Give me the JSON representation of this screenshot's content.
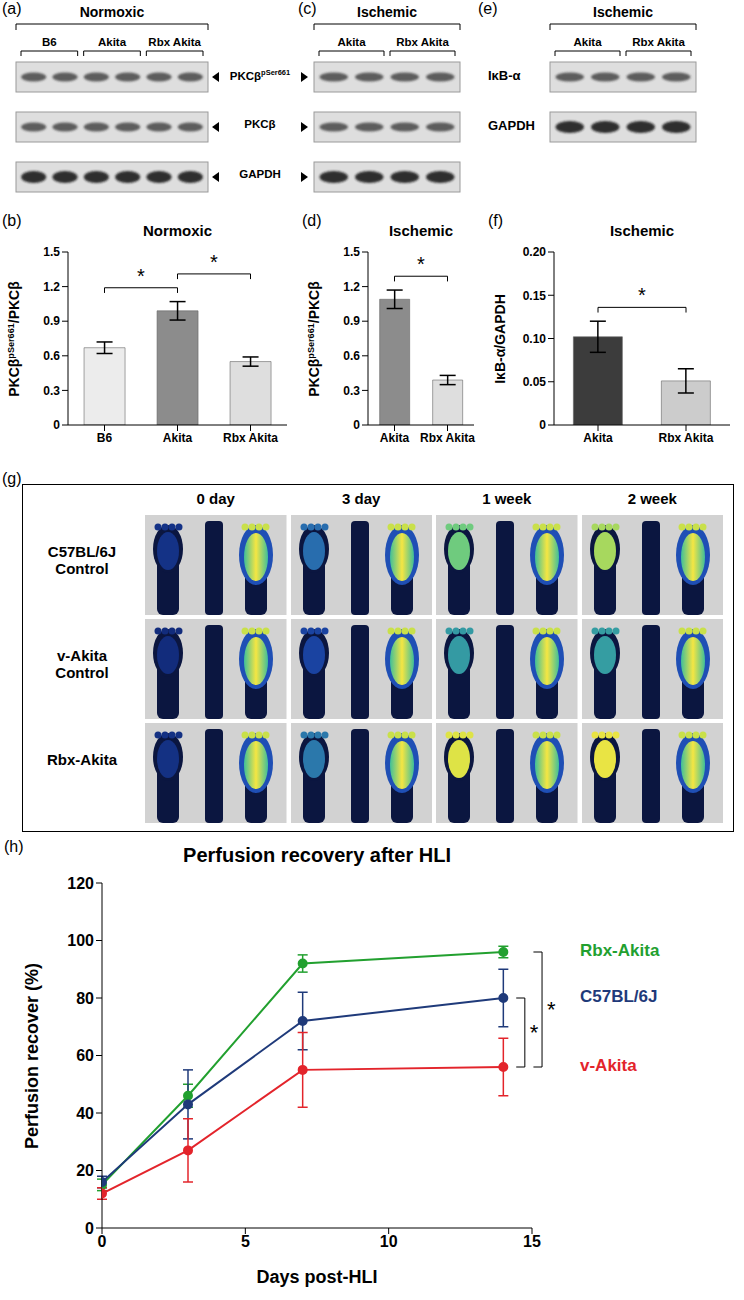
{
  "chart_data": [
    {
      "panel": "(b)",
      "type": "bar",
      "title": "Normoxic",
      "y_label": {
        "text": "PKCβ",
        "sup": "pSer661",
        "after": "/PKCβ"
      },
      "categories": [
        "B6",
        "Akita",
        "Rbx Akita"
      ],
      "values": [
        0.67,
        0.99,
        0.55
      ],
      "errors": [
        0.05,
        0.08,
        0.04
      ],
      "colors": [
        "#ececec",
        "#8c8c8c",
        "#dedede"
      ],
      "ylim": [
        0,
        1.5
      ],
      "yticks": [
        0,
        0.3,
        0.6,
        0.9,
        1.2,
        1.5
      ],
      "significance": [
        {
          "from": "B6",
          "to": "Akita",
          "label": "*"
        },
        {
          "from": "Akita",
          "to": "Rbx Akita",
          "label": "*"
        }
      ]
    },
    {
      "panel": "(d)",
      "type": "bar",
      "title": "Ischemic",
      "y_label": {
        "text": "PKCβ",
        "sup": "pSer661",
        "after": "/PKCβ"
      },
      "categories": [
        "Akita",
        "Rbx Akita"
      ],
      "values": [
        1.09,
        0.39
      ],
      "errors": [
        0.08,
        0.04
      ],
      "colors": [
        "#8c8c8c",
        "#dedede"
      ],
      "ylim": [
        0,
        1.5
      ],
      "yticks": [
        0,
        0.3,
        0.6,
        0.9,
        1.2,
        1.5
      ],
      "significance": [
        {
          "from": "Akita",
          "to": "Rbx Akita",
          "label": "*"
        }
      ]
    },
    {
      "panel": "(f)",
      "type": "bar",
      "title": "Ischemic",
      "y_label": "IκB-α/GAPDH",
      "categories": [
        "Akita",
        "Rbx Akita"
      ],
      "values": [
        0.102,
        0.051
      ],
      "errors": [
        0.018,
        0.014
      ],
      "colors": [
        "#3c3c3c",
        "#cccccc"
      ],
      "ylim": [
        0,
        0.2
      ],
      "yticks": [
        0,
        0.05,
        {
          "value": 0.1,
          "label": "0.10"
        },
        0.15,
        {
          "value": 0.2,
          "label": "0.20"
        }
      ],
      "significance": [
        {
          "from": "Akita",
          "to": "Rbx Akita",
          "label": "*"
        }
      ]
    },
    {
      "panel": "(h)",
      "type": "line",
      "title": "Perfusion recovery after HLI",
      "x_label": "Days post-HLI",
      "y_label": "Perfusion recover (%)",
      "x": [
        0,
        3,
        7,
        14
      ],
      "xlim": [
        0,
        15
      ],
      "xticks": [
        0,
        5,
        10,
        15
      ],
      "ylim": [
        0,
        120
      ],
      "yticks": [
        0,
        20,
        40,
        60,
        80,
        100,
        120
      ],
      "series": [
        {
          "name": "Rbx-Akita",
          "color": "#22a02f",
          "values": [
            15,
            46,
            92,
            96
          ],
          "errors": [
            2,
            4,
            3,
            2
          ]
        },
        {
          "name": "C57BL/6J",
          "color": "#1f3a7a",
          "values": [
            16,
            43,
            72,
            80
          ],
          "errors": [
            2,
            12,
            10,
            10
          ]
        },
        {
          "name": "v-Akita",
          "color": "#e3242b",
          "values": [
            12,
            27,
            55,
            56
          ],
          "errors": [
            2,
            11,
            13,
            10
          ]
        }
      ],
      "significance": [
        {
          "from": "C57BL/6J",
          "to": "v-Akita",
          "label": "*"
        },
        {
          "from": "Rbx-Akita",
          "to": "v-Akita",
          "label": "*"
        }
      ]
    }
  ],
  "shared_rows": [
    {
      "text": "PKCβ",
      "sup": "pSer661"
    },
    {
      "text": "PKCβ"
    },
    {
      "text": "GAPDH"
    }
  ],
  "blots": [
    {
      "panel": "(a)",
      "title": "Normoxic",
      "groups": [
        "B6",
        "Akita",
        "Rbx Akita"
      ]
    },
    {
      "panel": "(c)",
      "title": "Ischemic",
      "groups": [
        "Akita",
        "Rbx Akita"
      ]
    },
    {
      "panel": "(e)",
      "title": "Ischemic",
      "groups": [
        "Akita",
        "Rbx Akita"
      ],
      "rows": [
        {
          "text": "IκB-α"
        },
        {
          "text": "GAPDH"
        }
      ]
    }
  ],
  "images": {
    "panel": "(g)",
    "columns": [
      "0 day",
      "3 day",
      "1 week",
      "2 week"
    ],
    "rows": [
      "C57BL/6J Control",
      "v-Akita Control",
      "Rbx-Akita"
    ]
  }
}
